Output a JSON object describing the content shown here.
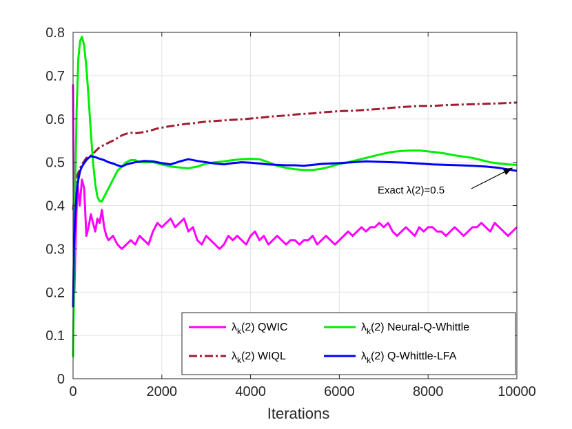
{
  "chart_data": {
    "type": "line",
    "title": "",
    "xlabel": "Iterations",
    "ylabel": "",
    "xlim": [
      0,
      10000
    ],
    "ylim": [
      0,
      0.8
    ],
    "xticks": [
      0,
      2000,
      4000,
      6000,
      8000,
      10000
    ],
    "yticks": [
      0,
      0.1,
      0.2,
      0.3,
      0.4,
      0.5,
      0.6,
      0.7,
      0.8
    ],
    "xtick_labels": [
      "0",
      "2000",
      "4000",
      "6000",
      "8000",
      "10000"
    ],
    "ytick_labels": [
      "0",
      "0.1",
      "0.2",
      "0.3",
      "0.4",
      "0.5",
      "0.6",
      "0.7",
      "0.8"
    ],
    "grid": true,
    "legend_position": "bottom-right",
    "annotation": {
      "text": "Exact λ(2)=0.5",
      "x_from": 7500,
      "y_from": 0.43,
      "x_to": 9900,
      "y_to": 0.487
    },
    "series": [
      {
        "name": "λk(2) QWIC",
        "prefix": "λ",
        "sub": "k",
        "suffix": "(2) QWIC",
        "color": "#ff00ff",
        "dash": "solid",
        "x": [
          0,
          30,
          60,
          100,
          150,
          200,
          250,
          300,
          350,
          400,
          450,
          500,
          550,
          600,
          650,
          700,
          750,
          800,
          900,
          1000,
          1100,
          1200,
          1300,
          1400,
          1500,
          1600,
          1700,
          1800,
          1900,
          2000,
          2100,
          2200,
          2300,
          2400,
          2500,
          2600,
          2700,
          2800,
          2900,
          3000,
          3100,
          3200,
          3300,
          3400,
          3500,
          3600,
          3700,
          3800,
          3900,
          4000,
          4100,
          4200,
          4300,
          4400,
          4500,
          4600,
          4700,
          4800,
          4900,
          5000,
          5100,
          5200,
          5300,
          5400,
          5500,
          5600,
          5700,
          5800,
          5900,
          6000,
          6100,
          6200,
          6300,
          6400,
          6500,
          6600,
          6700,
          6800,
          6900,
          7000,
          7100,
          7200,
          7300,
          7400,
          7500,
          7600,
          7700,
          7800,
          7900,
          8000,
          8100,
          8200,
          8300,
          8400,
          8500,
          8600,
          8700,
          8800,
          8900,
          9000,
          9100,
          9200,
          9300,
          9400,
          9500,
          9600,
          9700,
          9800,
          9900,
          10000
        ],
        "y": [
          0.68,
          0.2,
          0.33,
          0.45,
          0.4,
          0.46,
          0.44,
          0.33,
          0.35,
          0.38,
          0.36,
          0.34,
          0.37,
          0.36,
          0.39,
          0.35,
          0.33,
          0.32,
          0.33,
          0.31,
          0.3,
          0.31,
          0.32,
          0.31,
          0.33,
          0.32,
          0.31,
          0.34,
          0.36,
          0.35,
          0.36,
          0.37,
          0.35,
          0.36,
          0.37,
          0.34,
          0.35,
          0.32,
          0.31,
          0.33,
          0.32,
          0.31,
          0.3,
          0.31,
          0.33,
          0.32,
          0.33,
          0.32,
          0.31,
          0.33,
          0.34,
          0.32,
          0.33,
          0.31,
          0.32,
          0.33,
          0.32,
          0.31,
          0.32,
          0.32,
          0.31,
          0.32,
          0.32,
          0.33,
          0.31,
          0.32,
          0.33,
          0.32,
          0.31,
          0.32,
          0.33,
          0.34,
          0.33,
          0.34,
          0.35,
          0.34,
          0.35,
          0.35,
          0.36,
          0.35,
          0.36,
          0.34,
          0.33,
          0.34,
          0.35,
          0.34,
          0.33,
          0.35,
          0.34,
          0.35,
          0.35,
          0.34,
          0.34,
          0.33,
          0.34,
          0.35,
          0.34,
          0.33,
          0.34,
          0.35,
          0.35,
          0.36,
          0.35,
          0.34,
          0.36,
          0.35,
          0.34,
          0.33,
          0.34,
          0.35
        ]
      },
      {
        "name": "λk(2) Neural-Q-Whittle",
        "prefix": "λ",
        "sub": "k",
        "suffix": "(2) Neural-Q-Whittle",
        "color": "#00ee00",
        "dash": "solid",
        "x": [
          0,
          20,
          50,
          80,
          120,
          160,
          200,
          250,
          300,
          350,
          400,
          450,
          500,
          550,
          600,
          650,
          700,
          750,
          800,
          900,
          1000,
          1100,
          1200,
          1300,
          1400,
          1500,
          1600,
          1800,
          2000,
          2200,
          2400,
          2600,
          2800,
          3000,
          3200,
          3400,
          3600,
          3800,
          4000,
          4200,
          4400,
          4600,
          4800,
          5000,
          5200,
          5400,
          5600,
          5800,
          6000,
          6200,
          6400,
          6600,
          6800,
          7000,
          7200,
          7400,
          7600,
          7800,
          8000,
          8200,
          8400,
          8600,
          8800,
          9000,
          9200,
          9400,
          9600,
          9800,
          10000
        ],
        "y": [
          0.05,
          0.2,
          0.45,
          0.62,
          0.74,
          0.78,
          0.79,
          0.77,
          0.72,
          0.65,
          0.57,
          0.5,
          0.45,
          0.42,
          0.41,
          0.41,
          0.42,
          0.43,
          0.44,
          0.46,
          0.48,
          0.49,
          0.5,
          0.505,
          0.505,
          0.5,
          0.5,
          0.5,
          0.495,
          0.49,
          0.488,
          0.486,
          0.49,
          0.497,
          0.5,
          0.502,
          0.505,
          0.507,
          0.508,
          0.507,
          0.5,
          0.492,
          0.487,
          0.484,
          0.482,
          0.482,
          0.485,
          0.49,
          0.496,
          0.5,
          0.505,
          0.51,
          0.515,
          0.52,
          0.524,
          0.526,
          0.527,
          0.527,
          0.525,
          0.523,
          0.52,
          0.516,
          0.513,
          0.51,
          0.505,
          0.5,
          0.497,
          0.495,
          0.494
        ]
      },
      {
        "name": "λk(2) WIQL",
        "prefix": "λ",
        "sub": "k",
        "suffix": "(2) WIQL",
        "color": "#a01c2e",
        "dash": "dashdot",
        "x": [
          0,
          30,
          60,
          100,
          150,
          200,
          300,
          400,
          500,
          600,
          700,
          800,
          900,
          1000,
          1100,
          1200,
          1300,
          1400,
          1500,
          1700,
          1900,
          2100,
          2300,
          2500,
          2700,
          3000,
          3300,
          3600,
          3900,
          4200,
          4500,
          4800,
          5100,
          5400,
          5700,
          6000,
          6300,
          6600,
          6900,
          7200,
          7500,
          7800,
          8100,
          8400,
          8700,
          9000,
          9300,
          9600,
          10000
        ],
        "y": [
          0.39,
          0.42,
          0.45,
          0.47,
          0.485,
          0.495,
          0.51,
          0.515,
          0.525,
          0.535,
          0.54,
          0.545,
          0.55,
          0.556,
          0.562,
          0.566,
          0.568,
          0.567,
          0.568,
          0.572,
          0.578,
          0.582,
          0.585,
          0.588,
          0.59,
          0.594,
          0.596,
          0.598,
          0.6,
          0.603,
          0.606,
          0.608,
          0.611,
          0.613,
          0.616,
          0.618,
          0.619,
          0.621,
          0.623,
          0.626,
          0.628,
          0.63,
          0.63,
          0.632,
          0.633,
          0.634,
          0.635,
          0.636,
          0.638
        ]
      },
      {
        "name": "λk(2) Q-Whittle-LFA",
        "prefix": "λ",
        "sub": "k",
        "suffix": "(2) Q-Whittle-LFA",
        "color": "#0000ff",
        "dash": "solid",
        "x": [
          0,
          20,
          50,
          80,
          120,
          160,
          200,
          250,
          300,
          350,
          400,
          450,
          500,
          600,
          700,
          800,
          900,
          1000,
          1100,
          1200,
          1400,
          1600,
          1800,
          2000,
          2200,
          2400,
          2600,
          2800,
          3000,
          3200,
          3400,
          3600,
          3800,
          4000,
          4200,
          4400,
          4600,
          4800,
          5000,
          5200,
          5400,
          5600,
          5800,
          6000,
          6300,
          6600,
          6900,
          7200,
          7500,
          7800,
          8100,
          8400,
          8700,
          9000,
          9300,
          9600,
          10000
        ],
        "y": [
          0.165,
          0.3,
          0.38,
          0.43,
          0.46,
          0.48,
          0.49,
          0.498,
          0.505,
          0.51,
          0.514,
          0.513,
          0.512,
          0.508,
          0.505,
          0.5,
          0.497,
          0.493,
          0.49,
          0.495,
          0.5,
          0.503,
          0.502,
          0.498,
          0.495,
          0.502,
          0.507,
          0.503,
          0.5,
          0.497,
          0.495,
          0.498,
          0.5,
          0.499,
          0.497,
          0.495,
          0.494,
          0.493,
          0.493,
          0.492,
          0.494,
          0.496,
          0.497,
          0.498,
          0.5,
          0.502,
          0.501,
          0.5,
          0.499,
          0.497,
          0.495,
          0.494,
          0.493,
          0.492,
          0.49,
          0.487,
          0.48
        ]
      }
    ],
    "legend_order": [
      0,
      1,
      2,
      3
    ]
  }
}
